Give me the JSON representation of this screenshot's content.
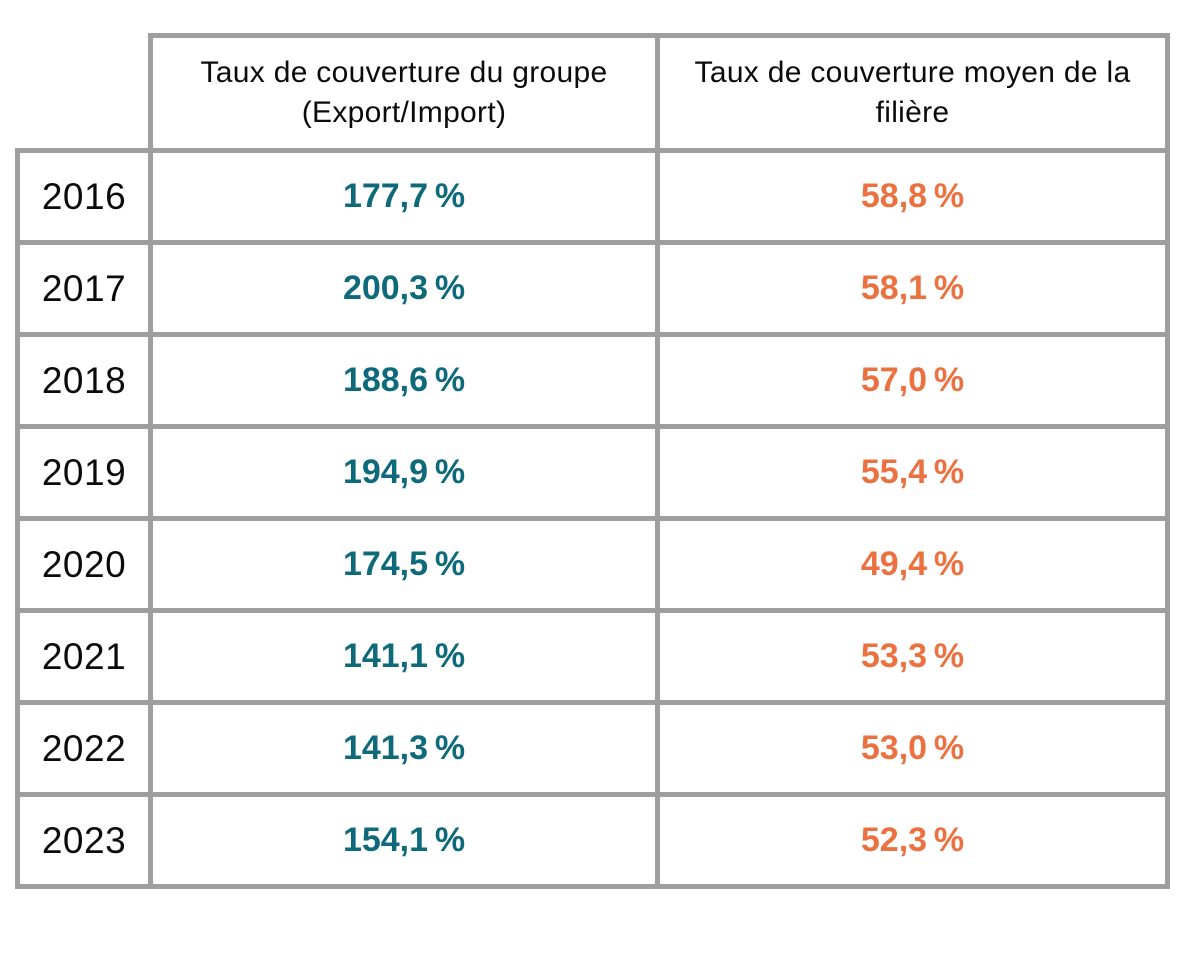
{
  "table": {
    "columns": [
      {
        "label": "Taux de couverture du groupe (Export/Import)"
      },
      {
        "label": "Taux de couverture moyen de la filière"
      }
    ],
    "rows": [
      {
        "year": "2016",
        "group_rate": "177,7 %",
        "sector_rate": "58,8 %"
      },
      {
        "year": "2017",
        "group_rate": "200,3 %",
        "sector_rate": "58,1 %"
      },
      {
        "year": "2018",
        "group_rate": "188,6 %",
        "sector_rate": "57,0 %"
      },
      {
        "year": "2019",
        "group_rate": "194,9 %",
        "sector_rate": "55,4 %"
      },
      {
        "year": "2020",
        "group_rate": "174,5 %",
        "sector_rate": "49,4 %"
      },
      {
        "year": "2021",
        "group_rate": "141,1 %",
        "sector_rate": "53,3 %"
      },
      {
        "year": "2022",
        "group_rate": "141,3 %",
        "sector_rate": "53,0 %"
      },
      {
        "year": "2023",
        "group_rate": "154,1 %",
        "sector_rate": "52,3 %"
      }
    ]
  },
  "colors": {
    "group_value": "#0e6a7a",
    "sector_value": "#ec7140",
    "border": "#9e9e9e",
    "text": "#0b0b0b"
  },
  "chart_data": {
    "type": "table",
    "categories": [
      "2016",
      "2017",
      "2018",
      "2019",
      "2020",
      "2021",
      "2022",
      "2023"
    ],
    "series": [
      {
        "name": "Taux de couverture du groupe (Export/Import)",
        "values": [
          177.7,
          200.3,
          188.6,
          194.9,
          174.5,
          141.1,
          141.3,
          154.1
        ],
        "unit": "%",
        "color": "#0e6a7a"
      },
      {
        "name": "Taux de couverture moyen de la filière",
        "values": [
          58.8,
          58.1,
          57.0,
          55.4,
          49.4,
          53.3,
          53.0,
          52.3
        ],
        "unit": "%",
        "color": "#ec7140"
      }
    ],
    "title": "",
    "legend": "none",
    "grid": "table-borders"
  }
}
